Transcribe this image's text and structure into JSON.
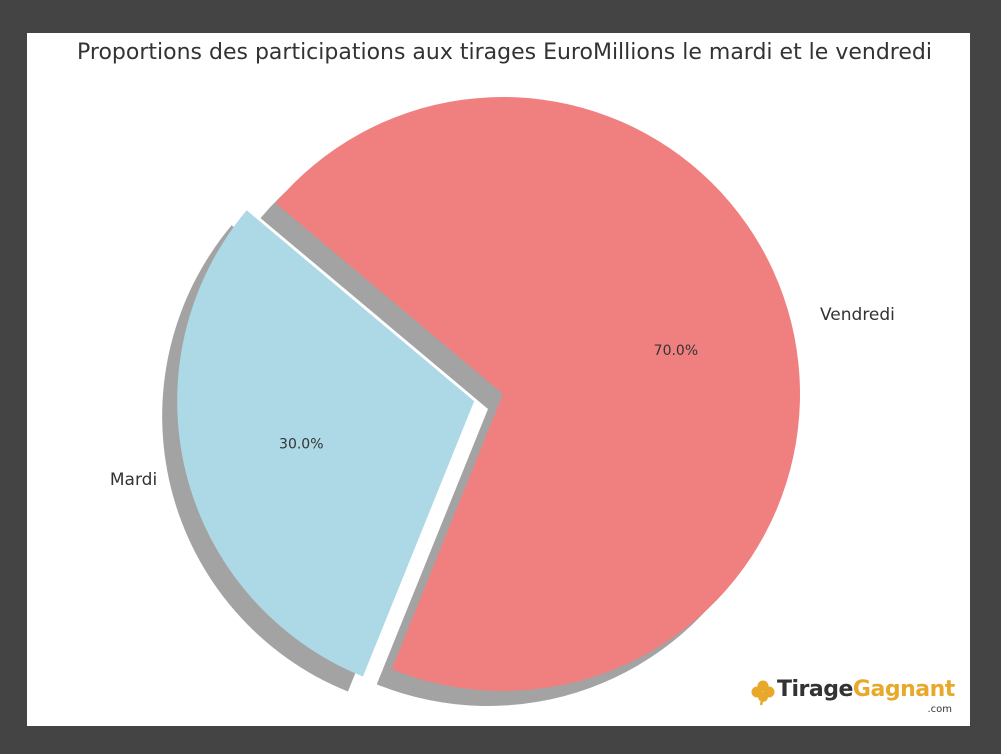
{
  "chart_data": {
    "type": "pie",
    "title": "Proportions des participations aux tirages EuroMillions le mardi et le vendredi",
    "slices": [
      {
        "label": "Mardi",
        "value": 30.0,
        "pct_label": "30.0%",
        "color": "#add8e6",
        "explode": 0.1
      },
      {
        "label": "Vendredi",
        "value": 70.0,
        "pct_label": "70.0%",
        "color": "#f08080",
        "explode": 0
      }
    ],
    "start_angle_deg": 140,
    "shadow": true,
    "shadow_color": "#999999"
  },
  "logo": {
    "name_part1": "Tirage",
    "name_part2": "Gagnant",
    "suffix": ".com",
    "icon": "clover-icon",
    "accent_color": "#e8a92a"
  }
}
